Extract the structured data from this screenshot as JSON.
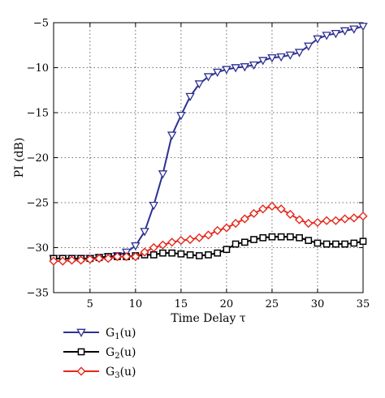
{
  "chart_data": {
    "type": "line",
    "title": "",
    "xlabel": "Time Delay τ",
    "ylabel": "PI (dB)",
    "xlim": [
      1,
      35
    ],
    "ylim": [
      -35,
      -5
    ],
    "xticks": [
      5,
      10,
      15,
      20,
      25,
      30,
      35
    ],
    "xtick_labels": [
      "5",
      "10",
      "15",
      "20",
      "25",
      "30",
      "35"
    ],
    "yticks": [
      -35,
      -30,
      -25,
      -20,
      -15,
      -10,
      -5
    ],
    "ytick_labels": [
      "−35",
      "−30",
      "−25",
      "−20",
      "−15",
      "−10",
      "−5"
    ],
    "grid": true,
    "legend_position": "below-left",
    "x": [
      1,
      2,
      3,
      4,
      5,
      6,
      7,
      8,
      9,
      10,
      11,
      12,
      13,
      14,
      15,
      16,
      17,
      18,
      19,
      20,
      21,
      22,
      23,
      24,
      25,
      26,
      27,
      28,
      29,
      30,
      31,
      32,
      33,
      34,
      35
    ],
    "series": [
      {
        "name": "G",
        "sub": "1",
        "suffix": "(u)",
        "color": "#2e3192",
        "marker": "triangle-down",
        "values": [
          -31.2,
          -31.2,
          -31.2,
          -31.2,
          -31.2,
          -31.1,
          -31.0,
          -30.9,
          -30.5,
          -29.8,
          -28.2,
          -25.3,
          -21.8,
          -17.5,
          -15.3,
          -13.2,
          -11.8,
          -11.0,
          -10.5,
          -10.2,
          -10.0,
          -9.9,
          -9.7,
          -9.2,
          -8.9,
          -8.8,
          -8.6,
          -8.3,
          -7.6,
          -6.8,
          -6.4,
          -6.2,
          -5.9,
          -5.7,
          -5.4
        ]
      },
      {
        "name": "G",
        "sub": "2",
        "suffix": "(u)",
        "color": "#000000",
        "marker": "square",
        "values": [
          -31.2,
          -31.2,
          -31.2,
          -31.2,
          -31.2,
          -31.1,
          -31.0,
          -31.0,
          -31.0,
          -30.9,
          -30.8,
          -30.8,
          -30.6,
          -30.6,
          -30.7,
          -30.8,
          -30.9,
          -30.8,
          -30.6,
          -30.2,
          -29.6,
          -29.4,
          -29.1,
          -28.9,
          -28.8,
          -28.8,
          -28.8,
          -28.9,
          -29.2,
          -29.5,
          -29.6,
          -29.6,
          -29.6,
          -29.5,
          -29.3
        ]
      },
      {
        "name": "G",
        "sub": "3",
        "suffix": "(u)",
        "color": "#e5281c",
        "marker": "diamond",
        "values": [
          -31.5,
          -31.5,
          -31.4,
          -31.4,
          -31.3,
          -31.2,
          -31.2,
          -31.0,
          -31.0,
          -31.0,
          -30.5,
          -30.0,
          -29.7,
          -29.4,
          -29.2,
          -29.1,
          -28.9,
          -28.6,
          -28.1,
          -27.8,
          -27.3,
          -26.8,
          -26.2,
          -25.7,
          -25.4,
          -25.7,
          -26.3,
          -26.9,
          -27.3,
          -27.2,
          -27.0,
          -27.0,
          -26.8,
          -26.7,
          -26.5
        ]
      }
    ]
  }
}
